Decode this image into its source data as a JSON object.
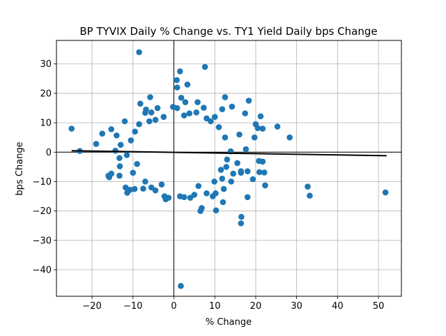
{
  "chart_data": {
    "type": "scatter",
    "title": "BP TYVIX Daily % Change vs. TY1 Yield Daily bps Change",
    "xlabel": "% Change",
    "ylabel": "bps Change",
    "xlim": [
      -28.7,
      55.6
    ],
    "ylim": [
      -49.0,
      38.0
    ],
    "xticks": [
      -20,
      -10,
      0,
      10,
      20,
      30,
      40,
      50
    ],
    "yticks": [
      -40,
      -30,
      -20,
      -10,
      0,
      10,
      20,
      30
    ],
    "xtick_labels": [
      "−20",
      "−10",
      "0",
      "10",
      "20",
      "30",
      "40",
      "50"
    ],
    "ytick_labels": [
      "−40",
      "−30",
      "−20",
      "−10",
      "0",
      "10",
      "20",
      "30"
    ],
    "grid": true,
    "reference_lines": {
      "x": 0,
      "y": 0
    },
    "regression_line": {
      "x": [
        -25,
        52
      ],
      "y": [
        0.5,
        -1.2
      ]
    },
    "points": [
      [
        -8.5,
        34
      ],
      [
        7.6,
        29
      ],
      [
        1.5,
        27.5
      ],
      [
        0.7,
        24.5
      ],
      [
        3.3,
        23
      ],
      [
        0.8,
        22
      ],
      [
        12.5,
        18.7
      ],
      [
        -5.8,
        18.7
      ],
      [
        1.8,
        18.5
      ],
      [
        18.3,
        17.5
      ],
      [
        2.8,
        17.0
      ],
      [
        5.8,
        17.0
      ],
      [
        -8.2,
        16.5
      ],
      [
        -0.2,
        15.4
      ],
      [
        0.8,
        15.0
      ],
      [
        7.3,
        15.1
      ],
      [
        11.8,
        14.6
      ],
      [
        -6.8,
        14.5
      ],
      [
        14.2,
        15.5
      ],
      [
        -4.0,
        15.0
      ],
      [
        17.4,
        13.2
      ],
      [
        -7.0,
        13.4
      ],
      [
        -5.5,
        13.5
      ],
      [
        3.8,
        13.2
      ],
      [
        21.2,
        12.2
      ],
      [
        -12.0,
        10.5
      ],
      [
        25.3,
        8.7
      ],
      [
        20.0,
        9.5
      ],
      [
        20.5,
        8.2
      ],
      [
        21.7,
        8.0
      ],
      [
        -25.0,
        8.0
      ],
      [
        -15.3,
        7.8
      ],
      [
        -17.5,
        6.3
      ],
      [
        -14.0,
        5.7
      ],
      [
        28.3,
        5.0
      ],
      [
        19.7,
        5.0
      ],
      [
        16.0,
        6.0
      ],
      [
        -19.0,
        2.8
      ],
      [
        -13.0,
        2.5
      ],
      [
        17.6,
        1.0
      ],
      [
        -14.3,
        0.5
      ],
      [
        -23.0,
        0.4
      ],
      [
        13.9,
        0.3
      ],
      [
        -11.5,
        -1.0
      ],
      [
        -13.3,
        -2.0
      ],
      [
        20.8,
        -3.0
      ],
      [
        21.7,
        -3.2
      ],
      [
        15.5,
        -3.7
      ],
      [
        -13.2,
        -4.8
      ],
      [
        12.8,
        -5.0
      ],
      [
        16.4,
        -6.5
      ],
      [
        -15.3,
        -7.3
      ],
      [
        -16.0,
        -8.0
      ],
      [
        -13.3,
        -8.0
      ],
      [
        -15.8,
        -8.5
      ],
      [
        14.5,
        -7.3
      ],
      [
        16.4,
        -7.0
      ],
      [
        20.9,
        -6.8
      ],
      [
        22.1,
        -6.9
      ],
      [
        18.0,
        -6.5
      ],
      [
        19.3,
        -9.2
      ],
      [
        11.8,
        -9.0
      ],
      [
        9.9,
        -10.0
      ],
      [
        22.3,
        -11.3
      ],
      [
        -11.8,
        -12.0
      ],
      [
        -10.7,
        -12.8
      ],
      [
        -11.4,
        -13.8
      ],
      [
        -9.6,
        -12.5
      ],
      [
        -7.5,
        -12.4
      ],
      [
        -5.5,
        -12.0
      ],
      [
        -4.5,
        -13.0
      ],
      [
        12.2,
        -12.5
      ],
      [
        10.2,
        -14.0
      ],
      [
        5.0,
        -14.5
      ],
      [
        4.0,
        -15.5
      ],
      [
        -2.3,
        -15.0
      ],
      [
        -2.0,
        -16.0
      ],
      [
        -1.3,
        -15.5
      ],
      [
        1.5,
        -15.0
      ],
      [
        2.5,
        -15.3
      ],
      [
        32.7,
        -11.7
      ],
      [
        33.2,
        -14.8
      ],
      [
        51.7,
        -13.7
      ],
      [
        18.0,
        -15.3
      ],
      [
        12.0,
        -17.0
      ],
      [
        6.8,
        -19.0
      ],
      [
        6.5,
        -20.0
      ],
      [
        10.3,
        -19.8
      ],
      [
        16.5,
        -22.0
      ],
      [
        16.4,
        -24.2
      ],
      [
        1.7,
        -45.5
      ],
      [
        8.0,
        -14.0
      ],
      [
        9.5,
        -15.0
      ],
      [
        -3.0,
        -11.0
      ],
      [
        6.0,
        -11.5
      ],
      [
        14.0,
        -10.0
      ],
      [
        -8.5,
        9.5
      ],
      [
        -9.5,
        7.0
      ],
      [
        -10.5,
        4.0
      ],
      [
        -9.0,
        -4.0
      ],
      [
        -10.0,
        -7.0
      ],
      [
        -7.0,
        -10.0
      ],
      [
        10.0,
        12.0
      ],
      [
        9.0,
        10.5
      ],
      [
        11.0,
        8.5
      ],
      [
        12.5,
        5.0
      ],
      [
        13.0,
        -2.5
      ],
      [
        11.5,
        -6.0
      ],
      [
        8.0,
        11.5
      ],
      [
        5.5,
        13.5
      ],
      [
        2.5,
        12.5
      ],
      [
        -2.5,
        12.0
      ],
      [
        -4.5,
        11.0
      ],
      [
        -6.0,
        10.5
      ]
    ]
  }
}
